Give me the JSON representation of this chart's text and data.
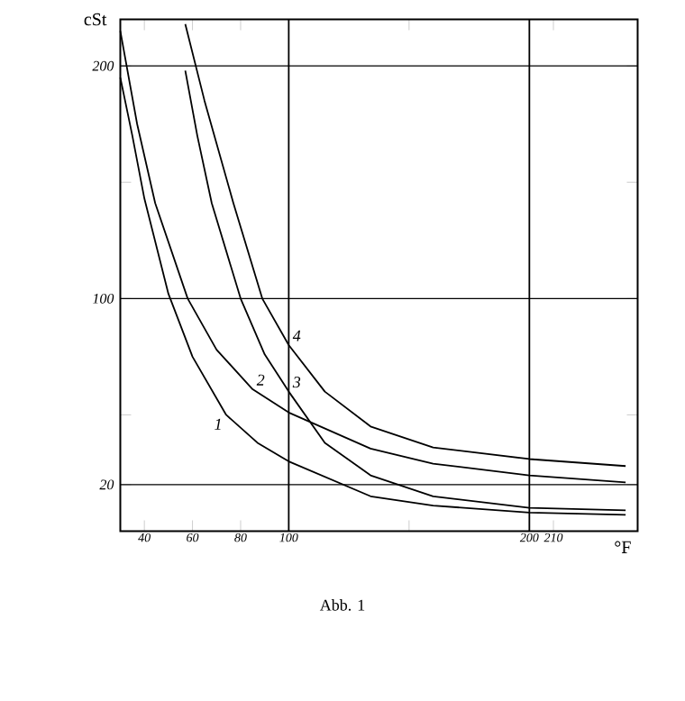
{
  "chart_data": {
    "type": "line",
    "ylabel": "cSt",
    "xlabel": "°F",
    "annotations": [
      "Abb. 1"
    ],
    "xlim": [
      30,
      245
    ],
    "ylim": [
      0,
      220
    ],
    "xticks": [
      40,
      60,
      80,
      100,
      {
        "value": 150,
        "label": null
      },
      200,
      210
    ],
    "yticks": [
      20,
      {
        "value": 50,
        "label": null
      },
      100,
      {
        "value": 150,
        "label": null
      },
      200
    ],
    "ref_lines": [
      {
        "axis": "x",
        "value": 100
      },
      {
        "axis": "x",
        "value": 200
      },
      {
        "axis": "y",
        "value": 20
      },
      {
        "axis": "y",
        "value": 100
      },
      {
        "axis": "y",
        "value": 200
      }
    ],
    "series": [
      {
        "name": "1",
        "color": "#000000",
        "x": [
          30,
          35,
          40,
          50,
          60,
          74,
          87,
          100,
          134,
          160,
          200,
          240
        ],
        "values": [
          195,
          170,
          143,
          102,
          75,
          50,
          38,
          30,
          15,
          11,
          8,
          7
        ]
      },
      {
        "name": "2",
        "color": "#000000",
        "x": [
          30,
          37,
          44.5,
          58,
          70,
          85,
          100,
          134,
          160,
          200,
          240
        ],
        "values": [
          215,
          175,
          141,
          100,
          78,
          61,
          51,
          35.5,
          29,
          24,
          21
        ]
      },
      {
        "name": "3",
        "color": "#000000",
        "x": [
          57,
          62,
          68,
          80,
          90,
          100,
          115,
          134,
          160,
          200,
          240
        ],
        "values": [
          198,
          170,
          141,
          100,
          76,
          60,
          38,
          24,
          15,
          10,
          9
        ]
      },
      {
        "name": "4",
        "color": "#000000",
        "x": [
          57,
          65,
          77,
          89,
          100,
          115,
          134,
          160,
          200,
          240
        ],
        "values": [
          218,
          185,
          141,
          100,
          80,
          60,
          45,
          36,
          31,
          28
        ]
      }
    ]
  }
}
